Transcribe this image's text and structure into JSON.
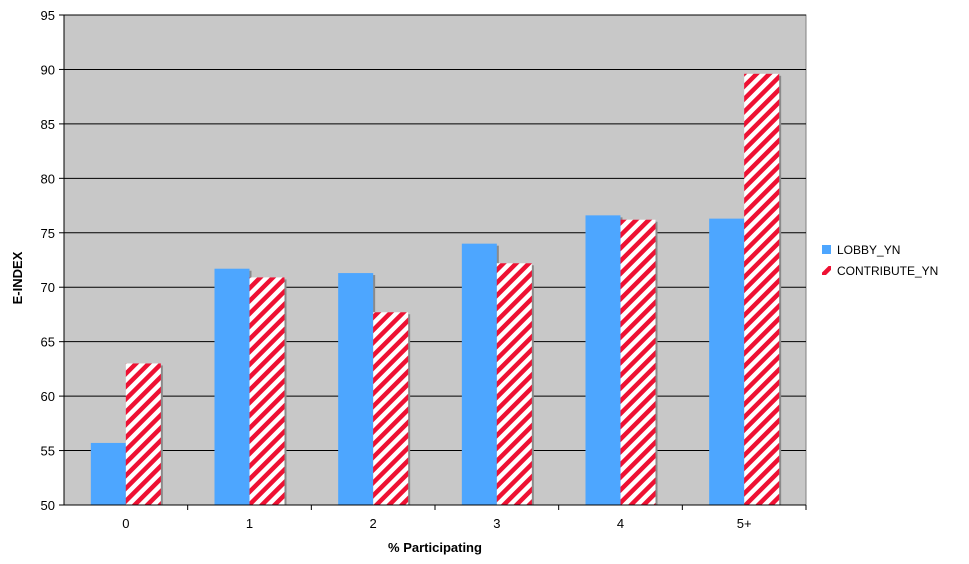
{
  "chart_data": {
    "type": "bar",
    "title": "",
    "xlabel": "% Participating",
    "ylabel": "E-INDEX",
    "categories": [
      "0",
      "1",
      "2",
      "3",
      "4",
      "5+"
    ],
    "ylim": [
      50,
      95
    ],
    "yticks": [
      50,
      55,
      60,
      65,
      70,
      75,
      80,
      85,
      90,
      95
    ],
    "grid": true,
    "legend_position": "right",
    "series": [
      {
        "name": "LOBBY_YN",
        "values": [
          55.7,
          71.7,
          71.3,
          74.0,
          76.6,
          76.3
        ],
        "color": "#4da6ff",
        "pattern": "solid"
      },
      {
        "name": "CONTRIBUTE_YN",
        "values": [
          63.0,
          70.9,
          67.7,
          72.2,
          76.2,
          89.6
        ],
        "color": "#ee1133",
        "pattern": "diagonal-stripes"
      }
    ]
  },
  "colors": {
    "plot_background": "#c8c8c8",
    "gridline": "#000000",
    "stripe_background": "#ffffff"
  }
}
